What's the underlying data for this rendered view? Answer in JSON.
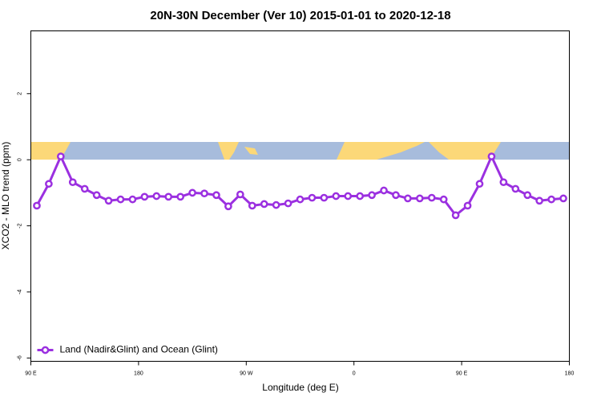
{
  "chart_data": {
    "type": "line",
    "title": "20N-30N December (Ver 10)   2015-01-01 to 2020-12-18",
    "x_label": "Longitude (deg E)",
    "y_label": "XCO2 - MLO trend (ppm)",
    "x": [
      95,
      105,
      115,
      125,
      135,
      145,
      155,
      165,
      175,
      185,
      195,
      205,
      215,
      225,
      235,
      245,
      255,
      265,
      275,
      285,
      295,
      305,
      315,
      325,
      335,
      345,
      355,
      365,
      375,
      385,
      395,
      405,
      415,
      425,
      435,
      445,
      455,
      465,
      475,
      485,
      495,
      505,
      515,
      525,
      535
    ],
    "series": [
      {
        "name": "Land (Nadir&Glint) and Ocean (Glint)",
        "color": "#9b30e0",
        "values": [
          -1.39,
          -0.73,
          0.1,
          -0.68,
          -0.88,
          -1.07,
          -1.24,
          -1.2,
          -1.2,
          -1.12,
          -1.1,
          -1.12,
          -1.12,
          -1.0,
          -1.02,
          -1.07,
          -1.41,
          -1.05,
          -1.39,
          -1.34,
          -1.37,
          -1.32,
          -1.2,
          -1.15,
          -1.15,
          -1.1,
          -1.1,
          -1.1,
          -1.07,
          -0.93,
          -1.07,
          -1.17,
          -1.17,
          -1.15,
          -1.2,
          -1.68,
          -1.39,
          -0.73,
          0.1,
          -0.68,
          -0.88,
          -1.07,
          -1.24,
          -1.2,
          -1.17
        ]
      }
    ],
    "xlim": [
      90,
      540
    ],
    "xticks": [
      {
        "value": 90,
        "label": "90 E"
      },
      {
        "value": 180,
        "label": "180"
      },
      {
        "value": 270,
        "label": "90 W"
      },
      {
        "value": 360,
        "label": "0"
      },
      {
        "value": 450,
        "label": "90 E"
      },
      {
        "value": 540,
        "label": "180"
      }
    ],
    "ylim": [
      -6.1,
      3.9
    ],
    "yticks": [
      -6,
      -4,
      -2,
      0,
      2
    ],
    "legend": "bottom-left"
  }
}
